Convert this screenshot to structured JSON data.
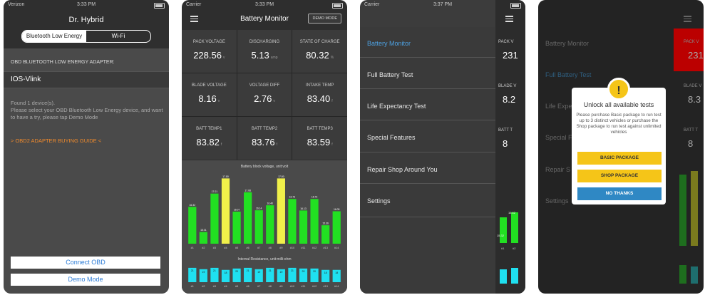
{
  "screen1": {
    "status": {
      "carrier": "Verizon",
      "time": "3:33 PM"
    },
    "title": "Dr. Hybrid",
    "segments": [
      "Bluetooth Low Energy",
      "Wi-Fi"
    ],
    "section_label": "OBD BLUETOOTH LOW ENERGY ADAPTER:",
    "device": "IOS-Vlink",
    "found_text": "Found 1 device(s).\nPlease select your OBD Bluetooth Low Energy device, and want to have a try, please tap Demo Mode",
    "guide_link": "> OBD2 ADAPTER BUYING GUIDE <",
    "connect_button": "Connect OBD",
    "demo_button": "Demo Mode"
  },
  "screen2": {
    "status": {
      "carrier": "Carrier",
      "time": "3:33 PM"
    },
    "title": "Battery Monitor",
    "demo_button": "DEMO MODE",
    "metrics": [
      {
        "label": "PACK VOLTAGE",
        "value": "228.56",
        "unit": "v"
      },
      {
        "label": "DISCHARGING",
        "value": "5.13",
        "unit": "amp"
      },
      {
        "label": "STATE OF CHARGE",
        "value": "80.32",
        "unit": "%"
      },
      {
        "label": "BLADE VOLTAGE",
        "value": "8.16",
        "unit": "v"
      },
      {
        "label": "VOLTAGE DIFF",
        "value": "2.76",
        "unit": "v"
      },
      {
        "label": "INTAKE TEMP",
        "value": "83.40",
        "unit": "f"
      },
      {
        "label": "BATT TEMP1",
        "value": "83.82",
        "unit": "f"
      },
      {
        "label": "BATT TEMP2",
        "value": "83.76",
        "unit": "f"
      },
      {
        "label": "BATT TEMP3",
        "value": "83.59",
        "unit": "f"
      }
    ]
  },
  "chart_data": [
    {
      "type": "bar",
      "title": "Battery block voltage, unit:volt",
      "categories": [
        "#1",
        "#2",
        "#3",
        "#4",
        "#5",
        "#6",
        "#7",
        "#8",
        "#9",
        "#10",
        "#11",
        "#12",
        "#13",
        "#14"
      ],
      "values": [
        16.32,
        15.01,
        17.01,
        17.8,
        16.07,
        17.08,
        16.14,
        16.4,
        17.8,
        16.73,
        16.13,
        16.73,
        15.36,
        16.09
      ],
      "highlight": [
        false,
        false,
        false,
        true,
        false,
        false,
        false,
        false,
        true,
        false,
        false,
        false,
        false,
        false
      ],
      "colors": {
        "normal": "#22e022",
        "highlight": "#f0f04a"
      },
      "ylim": [
        14.4,
        18
      ]
    },
    {
      "type": "bar",
      "title": "Internal Resistance, unit:milli-ohm",
      "categories": [
        "#1",
        "#2",
        "#3",
        "#4",
        "#5",
        "#6",
        "#7",
        "#8",
        "#9",
        "#10",
        "#11",
        "#12",
        "#13",
        "#14"
      ],
      "values": [
        21,
        19,
        21,
        18,
        20,
        21,
        19,
        21,
        19,
        21,
        20,
        20,
        18,
        18
      ],
      "colors": {
        "normal": "#1fe0f0"
      },
      "ylim": [
        0,
        24
      ]
    }
  ],
  "screen3": {
    "status": {
      "carrier": "Carrier",
      "time": "3:37 PM"
    },
    "menu": [
      "Battery Monitor",
      "Full Battery Test",
      "Life Expectancy Test",
      "Special Features",
      "Repair Shop Around You",
      "Settings"
    ],
    "peek": [
      {
        "label": "PACK V",
        "value": "231"
      },
      {
        "label": "BLADE V",
        "value": "8.2"
      },
      {
        "label": "BATT T",
        "value": "8"
      }
    ],
    "peek_bar_labels": [
      "15.32",
      "16.62"
    ],
    "peek_ticks": [
      "#1",
      "#2"
    ]
  },
  "screen4": {
    "menu": [
      "Battery Monitor",
      "Full Battery Test",
      "Life Expe",
      "Special F",
      "Repair S",
      "Settings"
    ],
    "peek": [
      {
        "label": "PACK V",
        "value": "231"
      },
      {
        "label": "BLADE V",
        "value": "8.3"
      },
      {
        "label": "BATT T",
        "value": "8"
      }
    ],
    "warn_icon": "!",
    "modal_title": "Unlock all available tests",
    "modal_text": "Please purchase Basic package to run test up to 3 distinct vehicles or purchase the Shop package to run test against unlimited vehicles",
    "buttons": [
      "BASIC PACKAGE",
      "SHOP PACKAGE",
      "NO THANKS"
    ]
  }
}
